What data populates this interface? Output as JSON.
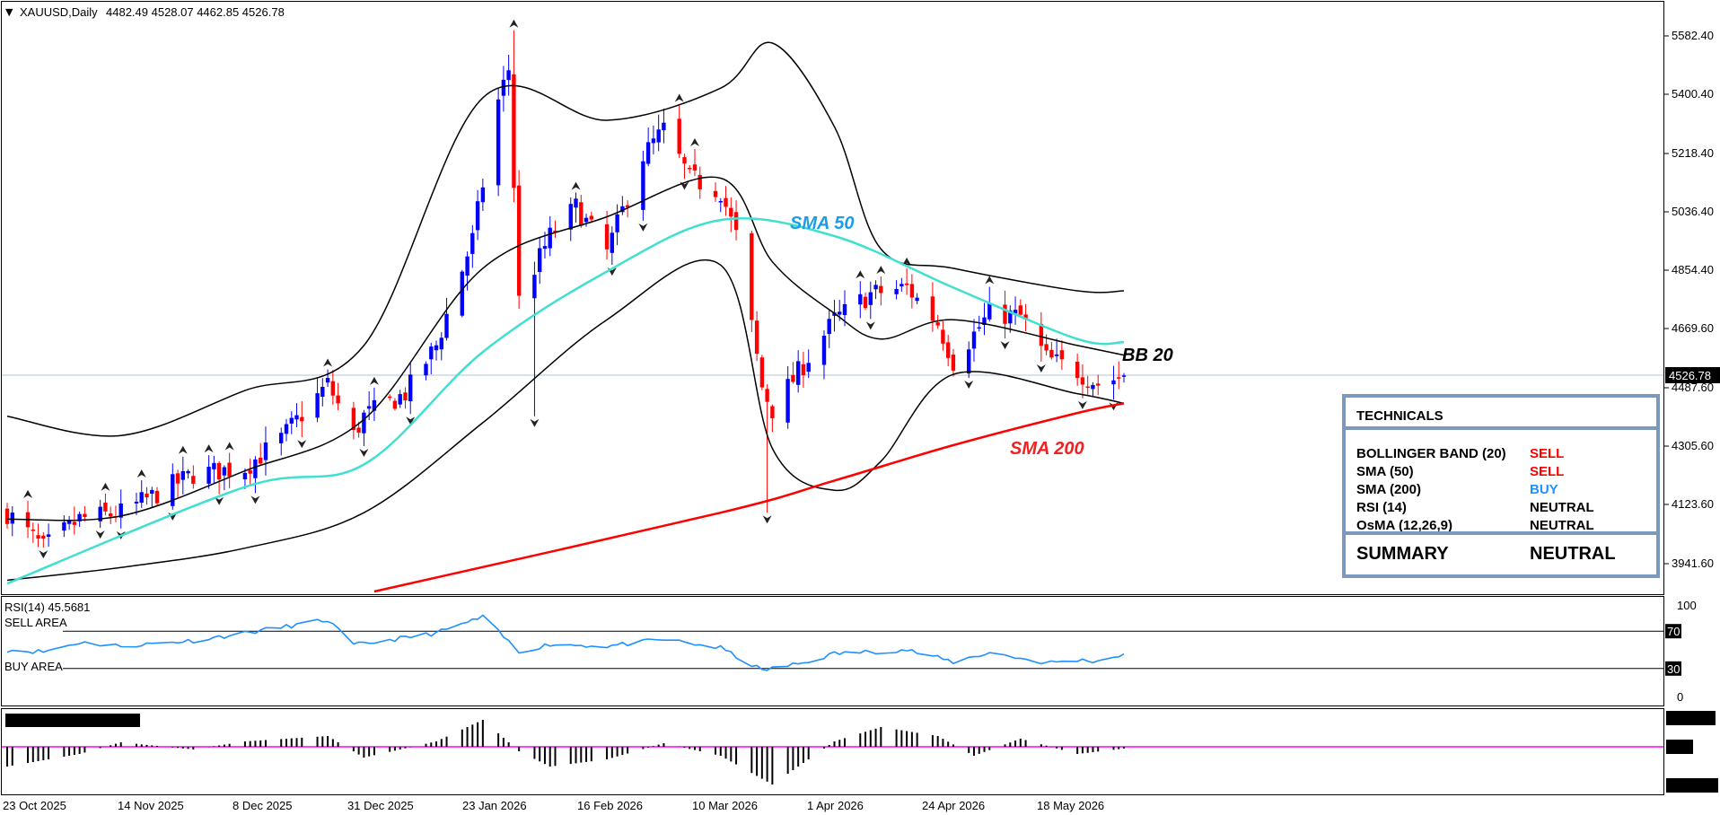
{
  "header": {
    "arrow_glyph": "▼",
    "symbol_label": "XAUUSD,Daily",
    "ohlc": "4482.49 4528.07 4462.85 4526.78"
  },
  "current_price_label": "4526.78",
  "price_axis": {
    "ticks": [
      "5582.40",
      "5400.40",
      "5218.40",
      "5036.40",
      "4854.40",
      "4669.60",
      "4487.60",
      "4305.60",
      "4123.60",
      "3941.60"
    ],
    "ylim": [
      3855,
      5665
    ]
  },
  "date_axis": {
    "labels": [
      "23 Oct 2025",
      "14 Nov 2025",
      "8 Dec 2025",
      "31 Dec 2025",
      "23 Jan 2026",
      "16 Feb 2026",
      "10 Mar 2026",
      "1 Apr 2026",
      "24 Apr 2026",
      "18 May 2026"
    ]
  },
  "annotations": {
    "sma50": "SMA 50",
    "bb20": "BB 20",
    "sma200": "SMA 200"
  },
  "colors": {
    "bull": "#0000ff",
    "bear": "#ff0000",
    "sma50": "#40e0d0",
    "sma200": "#ff0000",
    "bb": "#000000",
    "rsi": "#1e90ff",
    "osma_line": "#ff00ff",
    "panel_border": "#7c99bd",
    "sma50_text": "#1a9ee5",
    "sma200_text": "#ee2222"
  },
  "rsi_panel": {
    "title": "RSI(14) 45.5681",
    "sell_label": "SELL AREA",
    "buy_label": "BUY AREA",
    "axis_top": "100",
    "axis_bottom": "0",
    "level_high": "70",
    "level_low": "30"
  },
  "technicals": {
    "title": "TECHNICALS",
    "rows": [
      {
        "name": "BOLLINGER BAND (20)",
        "signal": "SELL",
        "color": "#ff0000"
      },
      {
        "name": "SMA (50)",
        "signal": "SELL",
        "color": "#ff0000"
      },
      {
        "name": "SMA (200)",
        "signal": "BUY",
        "color": "#1e90ff"
      },
      {
        "name": "RSI (14)",
        "signal": "NEUTRAL",
        "color": "#000000"
      },
      {
        "name": "OsMA (12,26,9)",
        "signal": "NEUTRAL",
        "color": "#000000"
      }
    ],
    "summary_label": "SUMMARY",
    "summary_value": "NEUTRAL"
  },
  "chart_data": {
    "type": "candlestick",
    "title": "XAUUSD,Daily",
    "ylim": [
      3855,
      5665
    ],
    "categories": [
      "23 Oct 2025",
      "14 Nov 2025",
      "8 Dec 2025",
      "31 Dec 2025",
      "23 Jan 2026",
      "16 Feb 2026",
      "10 Mar 2026",
      "1 Apr 2026",
      "24 Apr 2026",
      "18 May 2026"
    ],
    "close_anchors": [
      [
        "23 Oct 2025",
        4100
      ],
      [
        "30 Oct 2025",
        3990
      ],
      [
        "6 Nov 2025",
        4080
      ],
      [
        "14 Nov 2025",
        4100
      ],
      [
        "20 Nov 2025",
        4150
      ],
      [
        "28 Nov 2025",
        4220
      ],
      [
        "8 Dec 2025",
        4240
      ],
      [
        "15 Dec 2025",
        4330
      ],
      [
        "24 Dec 2025",
        4500
      ],
      [
        "29 Dec 2025",
        4340
      ],
      [
        "31 Dec 2025",
        4400
      ],
      [
        "8 Jan 2026",
        4470
      ],
      [
        "14 Jan 2026",
        4620
      ],
      [
        "21 Jan 2026",
        4950
      ],
      [
        "26 Jan 2026",
        5380
      ],
      [
        "28 Jan 2026",
        5480
      ],
      [
        "30 Jan 2026",
        4760
      ],
      [
        "5 Feb 2026",
        4960
      ],
      [
        "10 Feb 2026",
        5050
      ],
      [
        "16 Feb 2026",
        4910
      ],
      [
        "23 Feb 2026",
        5210
      ],
      [
        "27 Feb 2026",
        5290
      ],
      [
        "4 Mar 2026",
        5140
      ],
      [
        "10 Mar 2026",
        5100
      ],
      [
        "13 Mar 2026",
        4960
      ],
      [
        "18 Mar 2026",
        4490
      ],
      [
        "20 Mar 2026",
        4420
      ],
      [
        "26 Mar 2026",
        4560
      ],
      [
        "1 Apr 2026",
        4700
      ],
      [
        "8 Apr 2026",
        4780
      ],
      [
        "15 Apr 2026",
        4800
      ],
      [
        "21 Apr 2026",
        4690
      ],
      [
        "24 Apr 2026",
        4570
      ],
      [
        "1 May 2026",
        4720
      ],
      [
        "7 May 2026",
        4710
      ],
      [
        "12 May 2026",
        4580
      ],
      [
        "18 May 2026",
        4540
      ],
      [
        "22 May 2026",
        4500
      ],
      [
        "27 May 2026",
        4526.78
      ]
    ],
    "sma50": [
      [
        "23 Oct 2025",
        3880
      ],
      [
        "8 Dec 2025",
        4180
      ],
      [
        "31 Dec 2025",
        4250
      ],
      [
        "23 Jan 2026",
        4600
      ],
      [
        "16 Feb 2026",
        4850
      ],
      [
        "10 Mar 2026",
        5010
      ],
      [
        "1 Apr 2026",
        4960
      ],
      [
        "24 Apr 2026",
        4800
      ],
      [
        "18 May 2026",
        4640
      ],
      [
        "27 May 2026",
        4630
      ]
    ],
    "sma200": [
      [
        "2 Jan 2026",
        3855
      ],
      [
        "10 Mar 2026",
        4100
      ],
      [
        "1 Apr 2026",
        4200
      ],
      [
        "24 Apr 2026",
        4310
      ],
      [
        "18 May 2026",
        4410
      ],
      [
        "27 May 2026",
        4440
      ]
    ],
    "bb_upper": [
      [
        "23 Oct 2025",
        4400
      ],
      [
        "14 Nov 2025",
        4340
      ],
      [
        "8 Dec 2025",
        4480
      ],
      [
        "31 Dec 2025",
        4620
      ],
      [
        "23 Jan 2026",
        5390
      ],
      [
        "16 Feb 2026",
        5320
      ],
      [
        "10 Mar 2026",
        5420
      ],
      [
        "20 Mar 2026",
        5560
      ],
      [
        "1 Apr 2026",
        5300
      ],
      [
        "10 Apr 2026",
        4920
      ],
      [
        "24 Apr 2026",
        4860
      ],
      [
        "18 May 2026",
        4790
      ],
      [
        "27 May 2026",
        4790
      ]
    ],
    "bb_middle": [
      [
        "23 Oct 2025",
        4080
      ],
      [
        "14 Nov 2025",
        4090
      ],
      [
        "8 Dec 2025",
        4230
      ],
      [
        "31 Dec 2025",
        4390
      ],
      [
        "23 Jan 2026",
        4860
      ],
      [
        "16 Feb 2026",
        5020
      ],
      [
        "10 Mar 2026",
        5140
      ],
      [
        "20 Mar 2026",
        4880
      ],
      [
        "1 Apr 2026",
        4720
      ],
      [
        "10 Apr 2026",
        4640
      ],
      [
        "24 Apr 2026",
        4700
      ],
      [
        "18 May 2026",
        4620
      ],
      [
        "27 May 2026",
        4590
      ]
    ],
    "bb_lower": [
      [
        "23 Oct 2025",
        3890
      ],
      [
        "14 Nov 2025",
        3930
      ],
      [
        "8 Dec 2025",
        3990
      ],
      [
        "31 Dec 2025",
        4100
      ],
      [
        "23 Jan 2026",
        4380
      ],
      [
        "16 Feb 2026",
        4700
      ],
      [
        "10 Mar 2026",
        4870
      ],
      [
        "20 Mar 2026",
        4300
      ],
      [
        "1 Apr 2026",
        4170
      ],
      [
        "10 Apr 2026",
        4260
      ],
      [
        "24 Apr 2026",
        4530
      ],
      [
        "18 May 2026",
        4470
      ],
      [
        "27 May 2026",
        4440
      ]
    ],
    "rsi": {
      "ylim": [
        0,
        100
      ],
      "levels": [
        70,
        30
      ],
      "last": 45.5681,
      "points": [
        [
          "23 Oct 2025",
          50
        ],
        [
          "30 Oct 2025",
          48
        ],
        [
          "6 Nov 2025",
          58
        ],
        [
          "14 Nov 2025",
          54
        ],
        [
          "28 Nov 2025",
          60
        ],
        [
          "8 Dec 2025",
          68
        ],
        [
          "24 Dec 2025",
          82
        ],
        [
          "29 Dec 2025",
          55
        ],
        [
          "8 Jan 2026",
          63
        ],
        [
          "14 Jan 2026",
          68
        ],
        [
          "23 Jan 2026",
          85
        ],
        [
          "30 Jan 2026",
          48
        ],
        [
          "5 Feb 2026",
          56
        ],
        [
          "16 Feb 2026",
          54
        ],
        [
          "27 Feb 2026",
          61
        ],
        [
          "10 Mar 2026",
          52
        ],
        [
          "18 Mar 2026",
          28
        ],
        [
          "26 Mar 2026",
          36
        ],
        [
          "1 Apr 2026",
          46
        ],
        [
          "15 Apr 2026",
          50
        ],
        [
          "24 Apr 2026",
          37
        ],
        [
          "1 May 2026",
          47
        ],
        [
          "12 May 2026",
          36
        ],
        [
          "18 May 2026",
          39
        ],
        [
          "22 May 2026",
          38
        ],
        [
          "27 May 2026",
          45.5681
        ]
      ]
    },
    "osma": {
      "points": [
        [
          "23 Oct 2025",
          -22
        ],
        [
          "6 Nov 2025",
          -8
        ],
        [
          "14 Nov 2025",
          5
        ],
        [
          "28 Nov 2025",
          -3
        ],
        [
          "8 Dec 2025",
          6
        ],
        [
          "24 Dec 2025",
          12
        ],
        [
          "31 Dec 2025",
          -12
        ],
        [
          "14 Jan 2026",
          6
        ],
        [
          "23 Jan 2026",
          30
        ],
        [
          "30 Jan 2026",
          -5
        ],
        [
          "5 Feb 2026",
          -22
        ],
        [
          "16 Feb 2026",
          -14
        ],
        [
          "27 Feb 2026",
          4
        ],
        [
          "10 Mar 2026",
          -10
        ],
        [
          "20 Mar 2026",
          -42
        ],
        [
          "1 Apr 2026",
          6
        ],
        [
          "10 Apr 2026",
          22
        ],
        [
          "21 Apr 2026",
          12
        ],
        [
          "28 Apr 2026",
          -10
        ],
        [
          "7 May 2026",
          9
        ],
        [
          "18 May 2026",
          -8
        ],
        [
          "27 May 2026",
          -2
        ]
      ]
    }
  }
}
